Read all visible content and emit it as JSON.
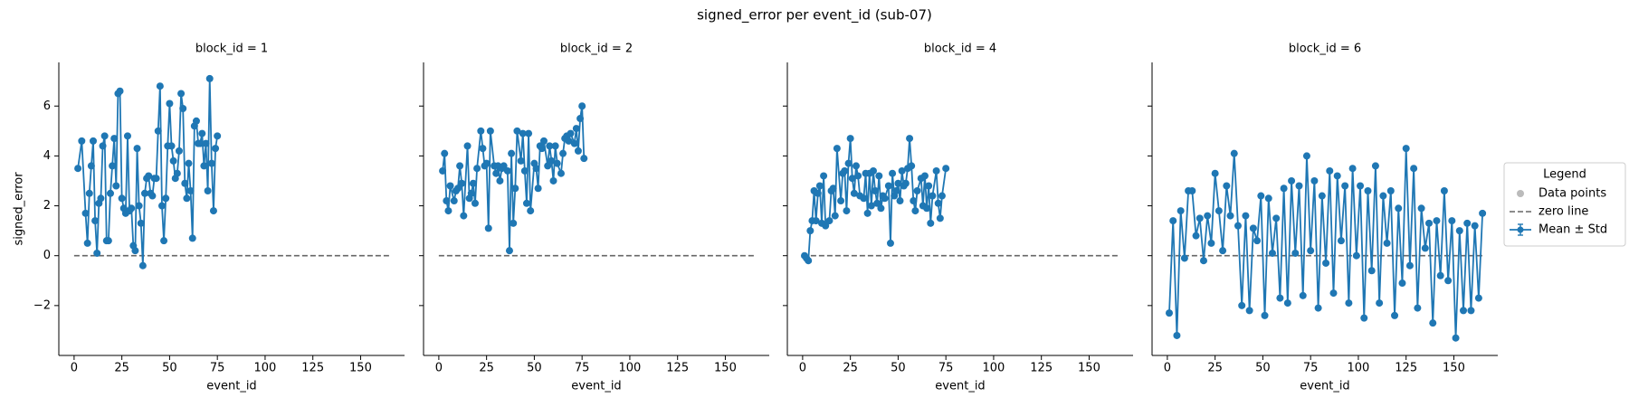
{
  "title": "signed_error per event_id (sub-07)",
  "legend": {
    "title": "Legend",
    "entries": [
      "Data points",
      "zero line",
      "Mean ± Std"
    ]
  },
  "chart_data": [
    {
      "type": "line",
      "title": "block_id = 1",
      "xlabel": "event_id",
      "ylabel": "signed_error",
      "x": [
        2,
        4,
        6,
        7,
        8,
        9,
        10,
        11,
        12,
        13,
        14,
        15,
        16,
        17,
        18,
        19,
        20,
        21,
        22,
        23,
        24,
        25,
        26,
        27,
        28,
        29,
        30,
        31,
        32,
        33,
        34,
        35,
        36,
        37,
        38,
        39,
        40,
        41,
        42,
        43,
        44,
        45,
        46,
        47,
        48,
        49,
        50,
        51,
        52,
        53,
        54,
        55,
        56,
        57,
        58,
        59,
        60,
        61,
        62,
        63,
        64,
        65,
        66,
        67,
        68,
        69,
        70,
        71,
        72,
        73,
        74,
        75
      ],
      "series": [
        {
          "name": "Mean ± Std",
          "color": "#1f77b4",
          "values": [
            3.5,
            4.6,
            1.7,
            0.5,
            2.5,
            3.6,
            4.6,
            1.4,
            0.1,
            2.1,
            2.3,
            4.4,
            4.8,
            0.6,
            0.6,
            2.5,
            3.6,
            4.7,
            2.8,
            6.5,
            6.6,
            2.3,
            1.9,
            1.7,
            4.8,
            1.8,
            1.9,
            0.4,
            0.2,
            4.3,
            2.0,
            1.3,
            -0.4,
            2.5,
            3.1,
            3.2,
            2.5,
            2.4,
            3.1,
            3.1,
            5.0,
            6.8,
            2.0,
            0.6,
            2.3,
            4.4,
            6.1,
            4.4,
            3.8,
            3.1,
            3.3,
            4.2,
            6.5,
            5.9,
            2.9,
            2.3,
            3.7,
            2.6,
            0.7,
            5.2,
            5.4,
            4.5,
            4.5,
            4.9,
            3.6,
            4.5,
            2.6,
            7.1,
            3.7,
            1.8,
            4.3,
            4.8
          ]
        }
      ],
      "hline": {
        "y": 0,
        "x": [
          0,
          165
        ]
      },
      "xlim": [
        -8,
        173
      ],
      "ylim": [
        -4.0,
        7.75
      ],
      "xticks": [
        0,
        25,
        50,
        75,
        100,
        125,
        150
      ],
      "yticks": [
        {
          "value": -2,
          "label": "−2"
        },
        0,
        2,
        4,
        6
      ]
    },
    {
      "type": "line",
      "title": "block_id = 2",
      "xlabel": "event_id",
      "x": [
        2,
        3,
        4,
        5,
        6,
        8,
        9,
        10,
        11,
        12,
        13,
        15,
        16,
        17,
        18,
        19,
        20,
        22,
        23,
        24,
        25,
        26,
        27,
        29,
        30,
        31,
        32,
        33,
        34,
        36,
        37,
        38,
        39,
        40,
        41,
        43,
        44,
        45,
        46,
        47,
        48,
        50,
        51,
        52,
        53,
        54,
        55,
        57,
        58,
        59,
        60,
        61,
        62,
        64,
        65,
        66,
        67,
        68,
        69,
        71,
        72,
        73,
        74,
        75,
        76
      ],
      "series": [
        {
          "name": "Mean ± Std",
          "color": "#1f77b4",
          "values": [
            3.4,
            4.1,
            2.2,
            1.8,
            2.8,
            2.2,
            2.6,
            2.7,
            3.6,
            2.9,
            1.6,
            4.4,
            2.3,
            2.5,
            2.9,
            2.1,
            3.5,
            5.0,
            4.3,
            3.6,
            3.7,
            1.1,
            5.0,
            3.6,
            3.3,
            3.6,
            3.0,
            3.5,
            3.6,
            3.4,
            0.2,
            4.1,
            1.3,
            2.7,
            5.0,
            3.8,
            4.9,
            3.4,
            2.1,
            4.9,
            1.8,
            3.7,
            3.5,
            2.7,
            4.4,
            4.3,
            4.6,
            3.6,
            4.4,
            3.8,
            3.0,
            4.4,
            3.7,
            3.3,
            4.1,
            4.7,
            4.8,
            4.6,
            4.9,
            4.5,
            5.1,
            4.2,
            5.5,
            6.0,
            3.9
          ]
        }
      ],
      "hline": {
        "y": 0,
        "x": [
          0,
          165
        ]
      },
      "xlim": [
        -8,
        173
      ],
      "ylim": [
        -4.0,
        7.75
      ],
      "xticks": [
        0,
        25,
        50,
        75,
        100,
        125,
        150
      ],
      "yticks": [
        -2,
        0,
        2,
        4,
        6
      ]
    },
    {
      "type": "line",
      "title": "block_id = 4",
      "xlabel": "event_id",
      "x": [
        1,
        2,
        3,
        4,
        5,
        6,
        7,
        8,
        9,
        10,
        11,
        12,
        14,
        15,
        16,
        17,
        18,
        20,
        21,
        22,
        23,
        24,
        25,
        26,
        27,
        28,
        29,
        30,
        32,
        33,
        34,
        35,
        36,
        37,
        38,
        39,
        40,
        41,
        42,
        43,
        45,
        46,
        47,
        48,
        49,
        50,
        51,
        52,
        53,
        54,
        55,
        56,
        57,
        58,
        59,
        60,
        62,
        63,
        64,
        65,
        66,
        67,
        68,
        70,
        71,
        72,
        73,
        75
      ],
      "series": [
        {
          "name": "Mean ± Std",
          "color": "#1f77b4",
          "values": [
            0.0,
            -0.1,
            -0.2,
            1.0,
            1.4,
            2.6,
            1.4,
            2.5,
            2.8,
            1.3,
            3.2,
            1.2,
            1.4,
            2.6,
            2.7,
            1.6,
            4.3,
            2.2,
            3.3,
            3.4,
            1.8,
            3.7,
            4.7,
            3.1,
            2.5,
            3.6,
            3.2,
            2.4,
            2.3,
            3.3,
            1.7,
            3.3,
            2.0,
            3.4,
            2.6,
            2.1,
            3.2,
            1.9,
            2.4,
            2.3,
            2.8,
            0.5,
            3.3,
            2.4,
            2.6,
            2.9,
            2.2,
            3.4,
            2.8,
            2.9,
            3.5,
            4.7,
            3.6,
            2.2,
            1.8,
            2.6,
            3.1,
            2.0,
            3.2,
            1.9,
            2.8,
            1.3,
            2.4,
            3.4,
            2.1,
            1.5,
            2.4,
            3.5
          ]
        }
      ],
      "hline": {
        "y": 0,
        "x": [
          0,
          165
        ]
      },
      "xlim": [
        -8,
        173
      ],
      "ylim": [
        -4.0,
        7.75
      ],
      "xticks": [
        0,
        25,
        50,
        75,
        100,
        125,
        150
      ],
      "yticks": [
        -2,
        0,
        2,
        4,
        6
      ]
    },
    {
      "type": "line",
      "title": "block_id = 6",
      "xlabel": "event_id",
      "x": [
        1,
        3,
        5,
        7,
        9,
        11,
        13,
        15,
        17,
        19,
        21,
        23,
        25,
        27,
        29,
        31,
        33,
        35,
        37,
        39,
        41,
        43,
        45,
        47,
        49,
        51,
        53,
        55,
        57,
        59,
        61,
        63,
        65,
        67,
        69,
        71,
        73,
        75,
        77,
        79,
        81,
        83,
        85,
        87,
        89,
        91,
        93,
        95,
        97,
        99,
        101,
        103,
        105,
        107,
        109,
        111,
        113,
        115,
        117,
        119,
        121,
        123,
        125,
        127,
        129,
        131,
        133,
        135,
        137,
        139,
        141,
        143,
        145,
        147,
        149,
        151,
        153,
        155,
        157,
        159,
        161,
        163,
        165
      ],
      "series": [
        {
          "name": "Mean ± Std",
          "color": "#1f77b4",
          "values": [
            -2.3,
            1.4,
            -3.2,
            1.8,
            -0.1,
            2.6,
            2.6,
            0.8,
            1.5,
            -0.2,
            1.6,
            0.5,
            3.3,
            1.8,
            0.2,
            2.8,
            1.6,
            4.1,
            1.2,
            -2.0,
            1.6,
            -2.2,
            1.1,
            0.6,
            2.4,
            -2.4,
            2.3,
            0.1,
            1.5,
            -1.7,
            2.7,
            -1.9,
            3.0,
            0.1,
            2.8,
            -1.6,
            4.0,
            0.2,
            3.0,
            -2.1,
            2.4,
            -0.3,
            3.4,
            -1.5,
            3.2,
            0.6,
            2.8,
            -1.9,
            3.5,
            0.0,
            2.8,
            -2.5,
            2.6,
            -0.6,
            3.6,
            -1.9,
            2.4,
            0.5,
            2.6,
            -2.4,
            1.9,
            -1.1,
            4.3,
            -0.4,
            3.5,
            -2.1,
            1.9,
            0.3,
            1.3,
            -2.7,
            1.4,
            -0.8,
            2.6,
            -1.0,
            1.4,
            -3.3,
            1.0,
            -2.2,
            1.3,
            -2.2,
            1.2,
            -1.7,
            1.7
          ]
        }
      ],
      "hline": {
        "y": 0,
        "x": [
          0,
          165
        ]
      },
      "xlim": [
        -8,
        173
      ],
      "ylim": [
        -4.0,
        7.75
      ],
      "xticks": [
        0,
        25,
        50,
        75,
        100,
        125,
        150
      ],
      "yticks": [
        -2,
        0,
        2,
        4,
        6
      ]
    }
  ]
}
